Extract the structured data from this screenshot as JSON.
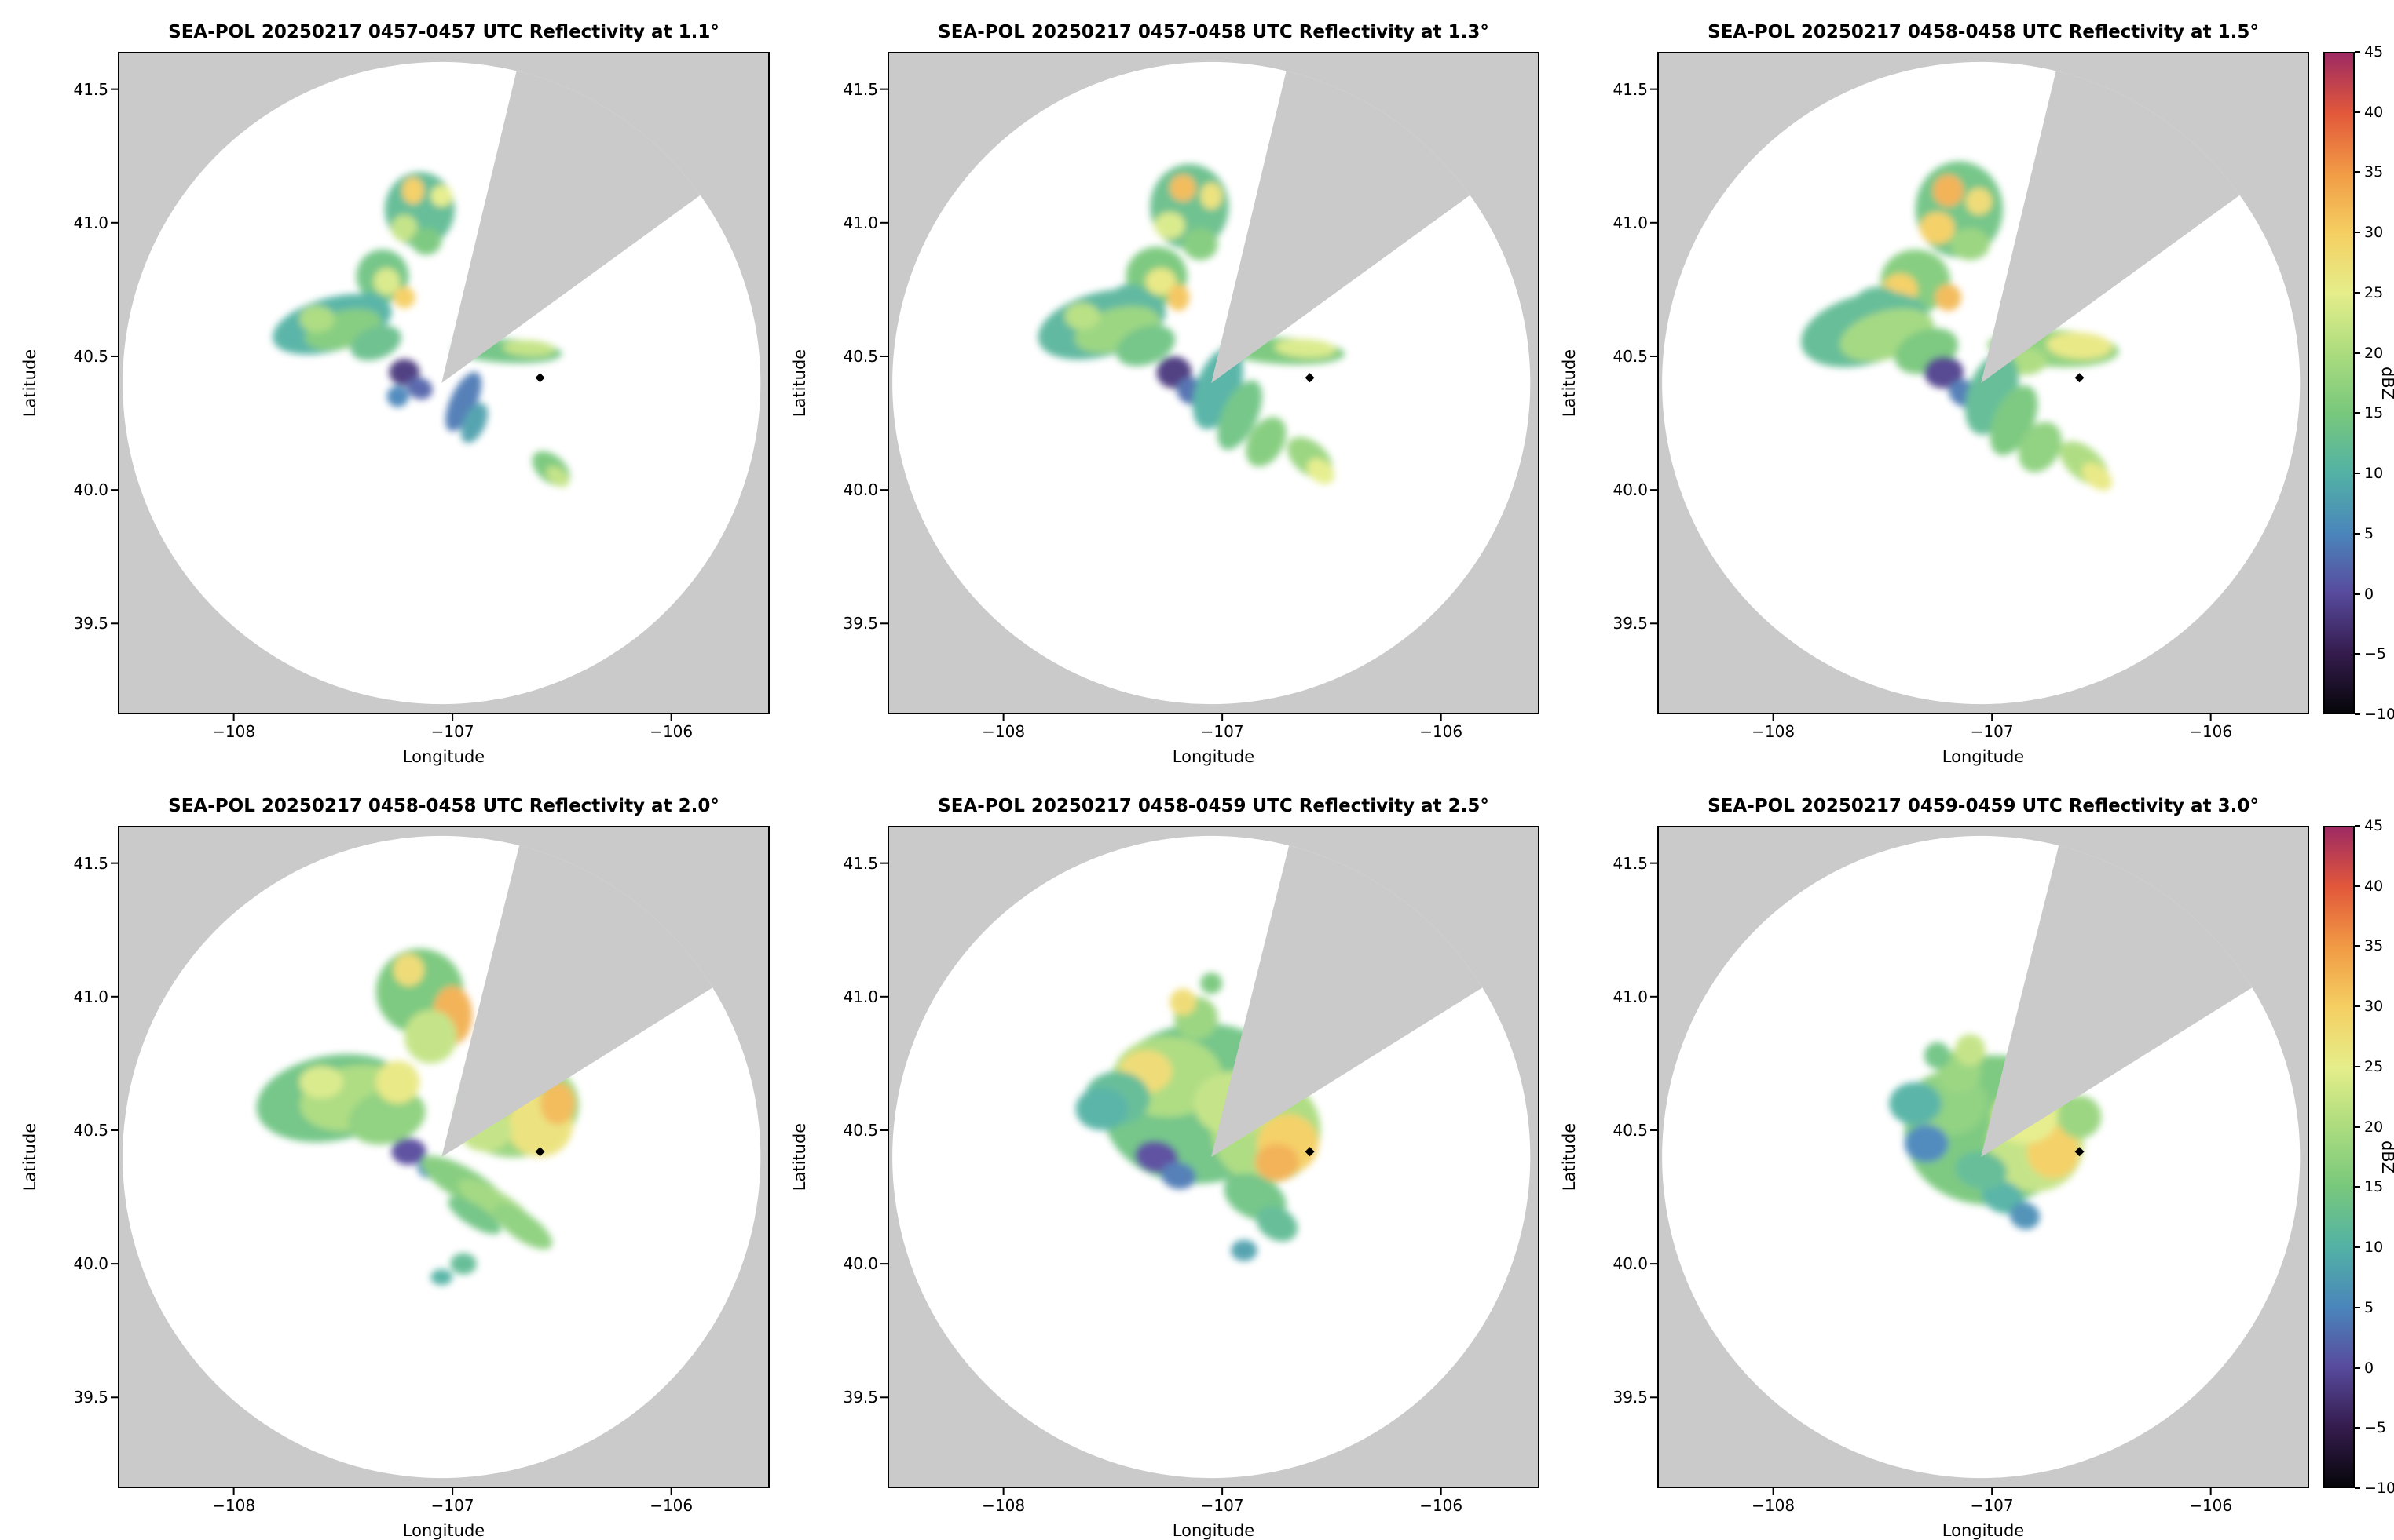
{
  "colors": {
    "figure_bg": "#ffffff",
    "panel_bg": "#cacaca",
    "disc": "#ffffff",
    "wedge": "#cacaca",
    "frame": "#000000",
    "marker": "#000000",
    "text": "#000000"
  },
  "chart_data": {
    "type": "heatmap",
    "subtype": "radar-ppi-reflectivity-grid",
    "axes": {
      "xlabel": "Longitude",
      "ylabel": "Latitude",
      "lon_min": -108.53,
      "lon_max": -105.55,
      "lat_min": 39.16,
      "lat_max": 41.64,
      "x_ticks": [
        {
          "v": -108,
          "label": "−108"
        },
        {
          "v": -107,
          "label": "−107"
        },
        {
          "v": -106,
          "label": "−106"
        }
      ],
      "y_ticks": [
        {
          "v": 41.5,
          "label": "41.5"
        },
        {
          "v": 41.0,
          "label": "41.0"
        },
        {
          "v": 40.5,
          "label": "40.5"
        },
        {
          "v": 40.0,
          "label": "40.0"
        },
        {
          "v": 39.5,
          "label": "39.5"
        }
      ]
    },
    "radar": {
      "center": [
        -107.05,
        40.4
      ],
      "disc_rx_deg": 1.458,
      "disc_ry_deg": 1.202,
      "site_marker": [
        -106.6,
        40.42
      ]
    },
    "colorbar": {
      "label": "dBZ",
      "min": -10,
      "max": 45,
      "ticks": [
        {
          "v": 45,
          "label": "45"
        },
        {
          "v": 40,
          "label": "40"
        },
        {
          "v": 35,
          "label": "35"
        },
        {
          "v": 30,
          "label": "30"
        },
        {
          "v": 25,
          "label": "25"
        },
        {
          "v": 20,
          "label": "20"
        },
        {
          "v": 15,
          "label": "15"
        },
        {
          "v": 10,
          "label": "10"
        },
        {
          "v": 5,
          "label": "5"
        },
        {
          "v": 0,
          "label": "0"
        },
        {
          "v": -5,
          "label": "−5"
        },
        {
          "v": -10,
          "label": "−10"
        }
      ],
      "stops": [
        [
          -10,
          "#06060a"
        ],
        [
          -5,
          "#351c4e"
        ],
        [
          0,
          "#584b9e"
        ],
        [
          5,
          "#4a86bb"
        ],
        [
          10,
          "#52b2a4"
        ],
        [
          15,
          "#78c87c"
        ],
        [
          20,
          "#abdc7e"
        ],
        [
          25,
          "#e5ee8a"
        ],
        [
          30,
          "#f5cf62"
        ],
        [
          35,
          "#f19b45"
        ],
        [
          40,
          "#e2583a"
        ],
        [
          45,
          "#9e2a63"
        ]
      ]
    },
    "panels": [
      {
        "title": "SEA-POL 20250217 0457-0457 UTC Reflectivity at 1.1°",
        "elevation": "1.1°",
        "time_utc": "0457-0457",
        "wedge_az": [
          13.5,
          54
        ],
        "echo_blobs_approx": [
          [
            -107.15,
            41.05,
            0.16,
            0.14,
            0,
            12
          ],
          [
            -107.18,
            41.12,
            0.05,
            0.05,
            0,
            30
          ],
          [
            -107.05,
            41.1,
            0.05,
            0.04,
            0,
            25
          ],
          [
            -107.22,
            40.98,
            0.06,
            0.05,
            0,
            22
          ],
          [
            -107.12,
            40.93,
            0.07,
            0.05,
            0,
            15
          ],
          [
            -107.32,
            40.8,
            0.12,
            0.1,
            0,
            14
          ],
          [
            -107.3,
            40.78,
            0.06,
            0.05,
            0,
            24
          ],
          [
            -107.22,
            40.72,
            0.05,
            0.04,
            0,
            30
          ],
          [
            -107.38,
            40.68,
            0.08,
            0.06,
            0,
            10
          ],
          [
            -107.55,
            40.62,
            0.28,
            0.1,
            -15,
            10
          ],
          [
            -107.5,
            40.6,
            0.18,
            0.07,
            -15,
            16
          ],
          [
            -107.62,
            40.64,
            0.08,
            0.05,
            0,
            20
          ],
          [
            -107.35,
            40.55,
            0.12,
            0.06,
            -20,
            13
          ],
          [
            -107.22,
            40.44,
            0.07,
            0.05,
            0,
            -2
          ],
          [
            -107.15,
            40.38,
            0.06,
            0.04,
            20,
            2
          ],
          [
            -107.25,
            40.35,
            0.05,
            0.04,
            0,
            5
          ],
          [
            -106.75,
            40.52,
            0.25,
            0.045,
            3,
            14
          ],
          [
            -106.65,
            40.53,
            0.12,
            0.03,
            3,
            22
          ],
          [
            -106.95,
            40.33,
            0.06,
            0.12,
            25,
            4
          ],
          [
            -106.9,
            40.25,
            0.05,
            0.08,
            25,
            8
          ],
          [
            -106.55,
            40.08,
            0.1,
            0.05,
            40,
            15
          ],
          [
            -106.52,
            40.05,
            0.06,
            0.03,
            40,
            22
          ]
        ]
      },
      {
        "title": "SEA-POL 20250217 0457-0458 UTC Reflectivity at 1.3°",
        "elevation": "1.3°",
        "time_utc": "0457-0458",
        "wedge_az": [
          13.5,
          54
        ],
        "echo_blobs_approx": [
          [
            -107.15,
            41.06,
            0.18,
            0.16,
            0,
            13
          ],
          [
            -107.18,
            41.13,
            0.06,
            0.05,
            0,
            32
          ],
          [
            -107.05,
            41.1,
            0.05,
            0.05,
            0,
            27
          ],
          [
            -107.24,
            40.99,
            0.07,
            0.05,
            0,
            24
          ],
          [
            -107.1,
            40.92,
            0.08,
            0.06,
            0,
            16
          ],
          [
            -107.3,
            40.8,
            0.14,
            0.11,
            0,
            15
          ],
          [
            -107.28,
            40.78,
            0.07,
            0.05,
            0,
            26
          ],
          [
            -107.2,
            40.72,
            0.05,
            0.05,
            0,
            31
          ],
          [
            -107.42,
            40.7,
            0.1,
            0.07,
            0,
            11
          ],
          [
            -107.55,
            40.62,
            0.3,
            0.12,
            -15,
            11
          ],
          [
            -107.48,
            40.6,
            0.2,
            0.08,
            -15,
            18
          ],
          [
            -107.64,
            40.65,
            0.08,
            0.05,
            0,
            21
          ],
          [
            -107.35,
            40.54,
            0.14,
            0.07,
            -20,
            14
          ],
          [
            -107.22,
            40.44,
            0.08,
            0.06,
            0,
            -2
          ],
          [
            -107.14,
            40.37,
            0.07,
            0.05,
            20,
            3
          ],
          [
            -106.72,
            40.52,
            0.28,
            0.05,
            3,
            15
          ],
          [
            -106.62,
            40.53,
            0.14,
            0.035,
            3,
            24
          ],
          [
            -107.02,
            40.38,
            0.1,
            0.16,
            20,
            10
          ],
          [
            -106.92,
            40.28,
            0.08,
            0.14,
            25,
            14
          ],
          [
            -106.8,
            40.18,
            0.08,
            0.1,
            30,
            16
          ],
          [
            -106.6,
            40.12,
            0.12,
            0.06,
            40,
            18
          ],
          [
            -106.55,
            40.07,
            0.07,
            0.04,
            40,
            25
          ]
        ]
      },
      {
        "title": "SEA-POL 20250217 0458-0458 UTC Reflectivity at 1.5°",
        "elevation": "1.5°",
        "time_utc": "0458-0458",
        "wedge_az": [
          13.5,
          54
        ],
        "echo_blobs_approx": [
          [
            -107.15,
            41.05,
            0.2,
            0.18,
            0,
            14
          ],
          [
            -107.2,
            41.12,
            0.07,
            0.06,
            0,
            33
          ],
          [
            -107.06,
            41.08,
            0.06,
            0.05,
            0,
            28
          ],
          [
            -107.25,
            40.98,
            0.08,
            0.06,
            0,
            30
          ],
          [
            -107.1,
            40.92,
            0.09,
            0.06,
            0,
            18
          ],
          [
            -107.35,
            40.78,
            0.16,
            0.12,
            0,
            16
          ],
          [
            -107.42,
            40.75,
            0.08,
            0.06,
            0,
            30
          ],
          [
            -107.2,
            40.72,
            0.06,
            0.05,
            0,
            32
          ],
          [
            -107.52,
            40.68,
            0.12,
            0.08,
            0,
            12
          ],
          [
            -107.58,
            40.6,
            0.3,
            0.13,
            -15,
            12
          ],
          [
            -107.48,
            40.58,
            0.22,
            0.09,
            -15,
            19
          ],
          [
            -107.3,
            40.52,
            0.15,
            0.08,
            -20,
            15
          ],
          [
            -107.22,
            40.44,
            0.09,
            0.06,
            0,
            -1
          ],
          [
            -107.12,
            40.36,
            0.08,
            0.05,
            20,
            4
          ],
          [
            -106.72,
            40.53,
            0.3,
            0.07,
            3,
            17
          ],
          [
            -106.6,
            40.54,
            0.15,
            0.05,
            3,
            26
          ],
          [
            -106.85,
            40.48,
            0.1,
            0.05,
            0,
            20
          ],
          [
            -107.0,
            40.36,
            0.11,
            0.16,
            20,
            12
          ],
          [
            -106.9,
            40.26,
            0.09,
            0.14,
            25,
            15
          ],
          [
            -106.78,
            40.16,
            0.09,
            0.1,
            30,
            17
          ],
          [
            -106.58,
            40.1,
            0.13,
            0.06,
            40,
            20
          ],
          [
            -106.52,
            40.05,
            0.08,
            0.04,
            40,
            26
          ]
        ]
      },
      {
        "title": "SEA-POL 20250217 0458-0458 UTC Reflectivity at 2.0°",
        "elevation": "2.0°",
        "time_utc": "0458-0458",
        "wedge_az": [
          14,
          58
        ],
        "echo_blobs_approx": [
          [
            -107.15,
            41.02,
            0.2,
            0.16,
            0,
            15
          ],
          [
            -107.2,
            41.1,
            0.07,
            0.06,
            0,
            28
          ],
          [
            -107.0,
            40.93,
            0.09,
            0.11,
            0,
            33
          ],
          [
            -107.1,
            40.85,
            0.12,
            0.1,
            0,
            22
          ],
          [
            -107.55,
            40.62,
            0.35,
            0.16,
            -10,
            14
          ],
          [
            -107.45,
            40.62,
            0.25,
            0.12,
            -10,
            20
          ],
          [
            -107.6,
            40.68,
            0.1,
            0.06,
            0,
            24
          ],
          [
            -107.3,
            40.55,
            0.18,
            0.1,
            -15,
            17
          ],
          [
            -107.25,
            40.68,
            0.1,
            0.08,
            0,
            26
          ],
          [
            -106.7,
            40.58,
            0.28,
            0.18,
            -10,
            18
          ],
          [
            -106.6,
            40.52,
            0.15,
            0.12,
            0,
            27
          ],
          [
            -106.52,
            40.6,
            0.08,
            0.08,
            0,
            32
          ],
          [
            -106.85,
            40.5,
            0.12,
            0.08,
            0,
            22
          ],
          [
            -107.2,
            40.42,
            0.08,
            0.05,
            0,
            0
          ],
          [
            -107.1,
            40.36,
            0.06,
            0.04,
            0,
            5
          ],
          [
            -106.95,
            40.3,
            0.22,
            0.06,
            30,
            16
          ],
          [
            -106.8,
            40.22,
            0.2,
            0.05,
            32,
            19
          ],
          [
            -106.68,
            40.14,
            0.16,
            0.05,
            35,
            17
          ],
          [
            -106.9,
            40.18,
            0.14,
            0.04,
            32,
            14
          ],
          [
            -106.95,
            40.0,
            0.06,
            0.04,
            0,
            12
          ],
          [
            -107.05,
            39.95,
            0.05,
            0.03,
            0,
            10
          ]
        ]
      },
      {
        "title": "SEA-POL 20250217 0458-0459 UTC Reflectivity at 2.5°",
        "elevation": "2.5°",
        "time_utc": "0458-0459",
        "wedge_az": [
          14,
          58
        ],
        "echo_blobs_approx": [
          [
            -107.1,
            40.6,
            0.45,
            0.3,
            -5,
            14
          ],
          [
            -107.25,
            40.7,
            0.25,
            0.15,
            0,
            20
          ],
          [
            -107.35,
            40.72,
            0.12,
            0.08,
            0,
            28
          ],
          [
            -107.48,
            40.62,
            0.15,
            0.1,
            0,
            12
          ],
          [
            -106.8,
            40.5,
            0.25,
            0.2,
            0,
            20
          ],
          [
            -106.7,
            40.45,
            0.14,
            0.11,
            0,
            30
          ],
          [
            -106.75,
            40.38,
            0.1,
            0.07,
            0,
            33
          ],
          [
            -106.95,
            40.6,
            0.18,
            0.12,
            0,
            22
          ],
          [
            -107.12,
            40.92,
            0.1,
            0.08,
            0,
            18
          ],
          [
            -107.18,
            40.98,
            0.06,
            0.05,
            0,
            28
          ],
          [
            -107.05,
            41.05,
            0.05,
            0.04,
            0,
            15
          ],
          [
            -107.3,
            40.4,
            0.1,
            0.06,
            10,
            0
          ],
          [
            -107.2,
            40.33,
            0.08,
            0.05,
            10,
            4
          ],
          [
            -106.85,
            40.25,
            0.15,
            0.08,
            25,
            14
          ],
          [
            -106.75,
            40.15,
            0.1,
            0.06,
            30,
            12
          ],
          [
            -106.9,
            40.05,
            0.06,
            0.04,
            0,
            8
          ],
          [
            -107.55,
            40.58,
            0.12,
            0.08,
            0,
            10
          ]
        ]
      },
      {
        "title": "SEA-POL 20250217 0459-0459 UTC Reflectivity at 3.0°",
        "elevation": "3.0°",
        "time_utc": "0459-0459",
        "wedge_az": [
          14,
          58
        ],
        "echo_blobs_approx": [
          [
            -107.0,
            40.5,
            0.4,
            0.28,
            -5,
            15
          ],
          [
            -106.8,
            40.45,
            0.22,
            0.18,
            0,
            22
          ],
          [
            -106.72,
            40.42,
            0.12,
            0.1,
            0,
            30
          ],
          [
            -106.85,
            40.55,
            0.15,
            0.1,
            0,
            25
          ],
          [
            -107.2,
            40.6,
            0.18,
            0.12,
            0,
            17
          ],
          [
            -107.35,
            40.6,
            0.12,
            0.08,
            0,
            10
          ],
          [
            -107.3,
            40.45,
            0.1,
            0.07,
            0,
            5
          ],
          [
            -107.15,
            40.72,
            0.1,
            0.08,
            0,
            18
          ],
          [
            -107.1,
            40.8,
            0.07,
            0.06,
            0,
            22
          ],
          [
            -106.95,
            40.25,
            0.1,
            0.06,
            20,
            10
          ],
          [
            -106.85,
            40.18,
            0.07,
            0.05,
            20,
            6
          ],
          [
            -107.05,
            40.35,
            0.12,
            0.07,
            10,
            12
          ],
          [
            -106.6,
            40.55,
            0.1,
            0.08,
            0,
            18
          ],
          [
            -107.25,
            40.78,
            0.06,
            0.05,
            0,
            14
          ]
        ]
      }
    ]
  }
}
